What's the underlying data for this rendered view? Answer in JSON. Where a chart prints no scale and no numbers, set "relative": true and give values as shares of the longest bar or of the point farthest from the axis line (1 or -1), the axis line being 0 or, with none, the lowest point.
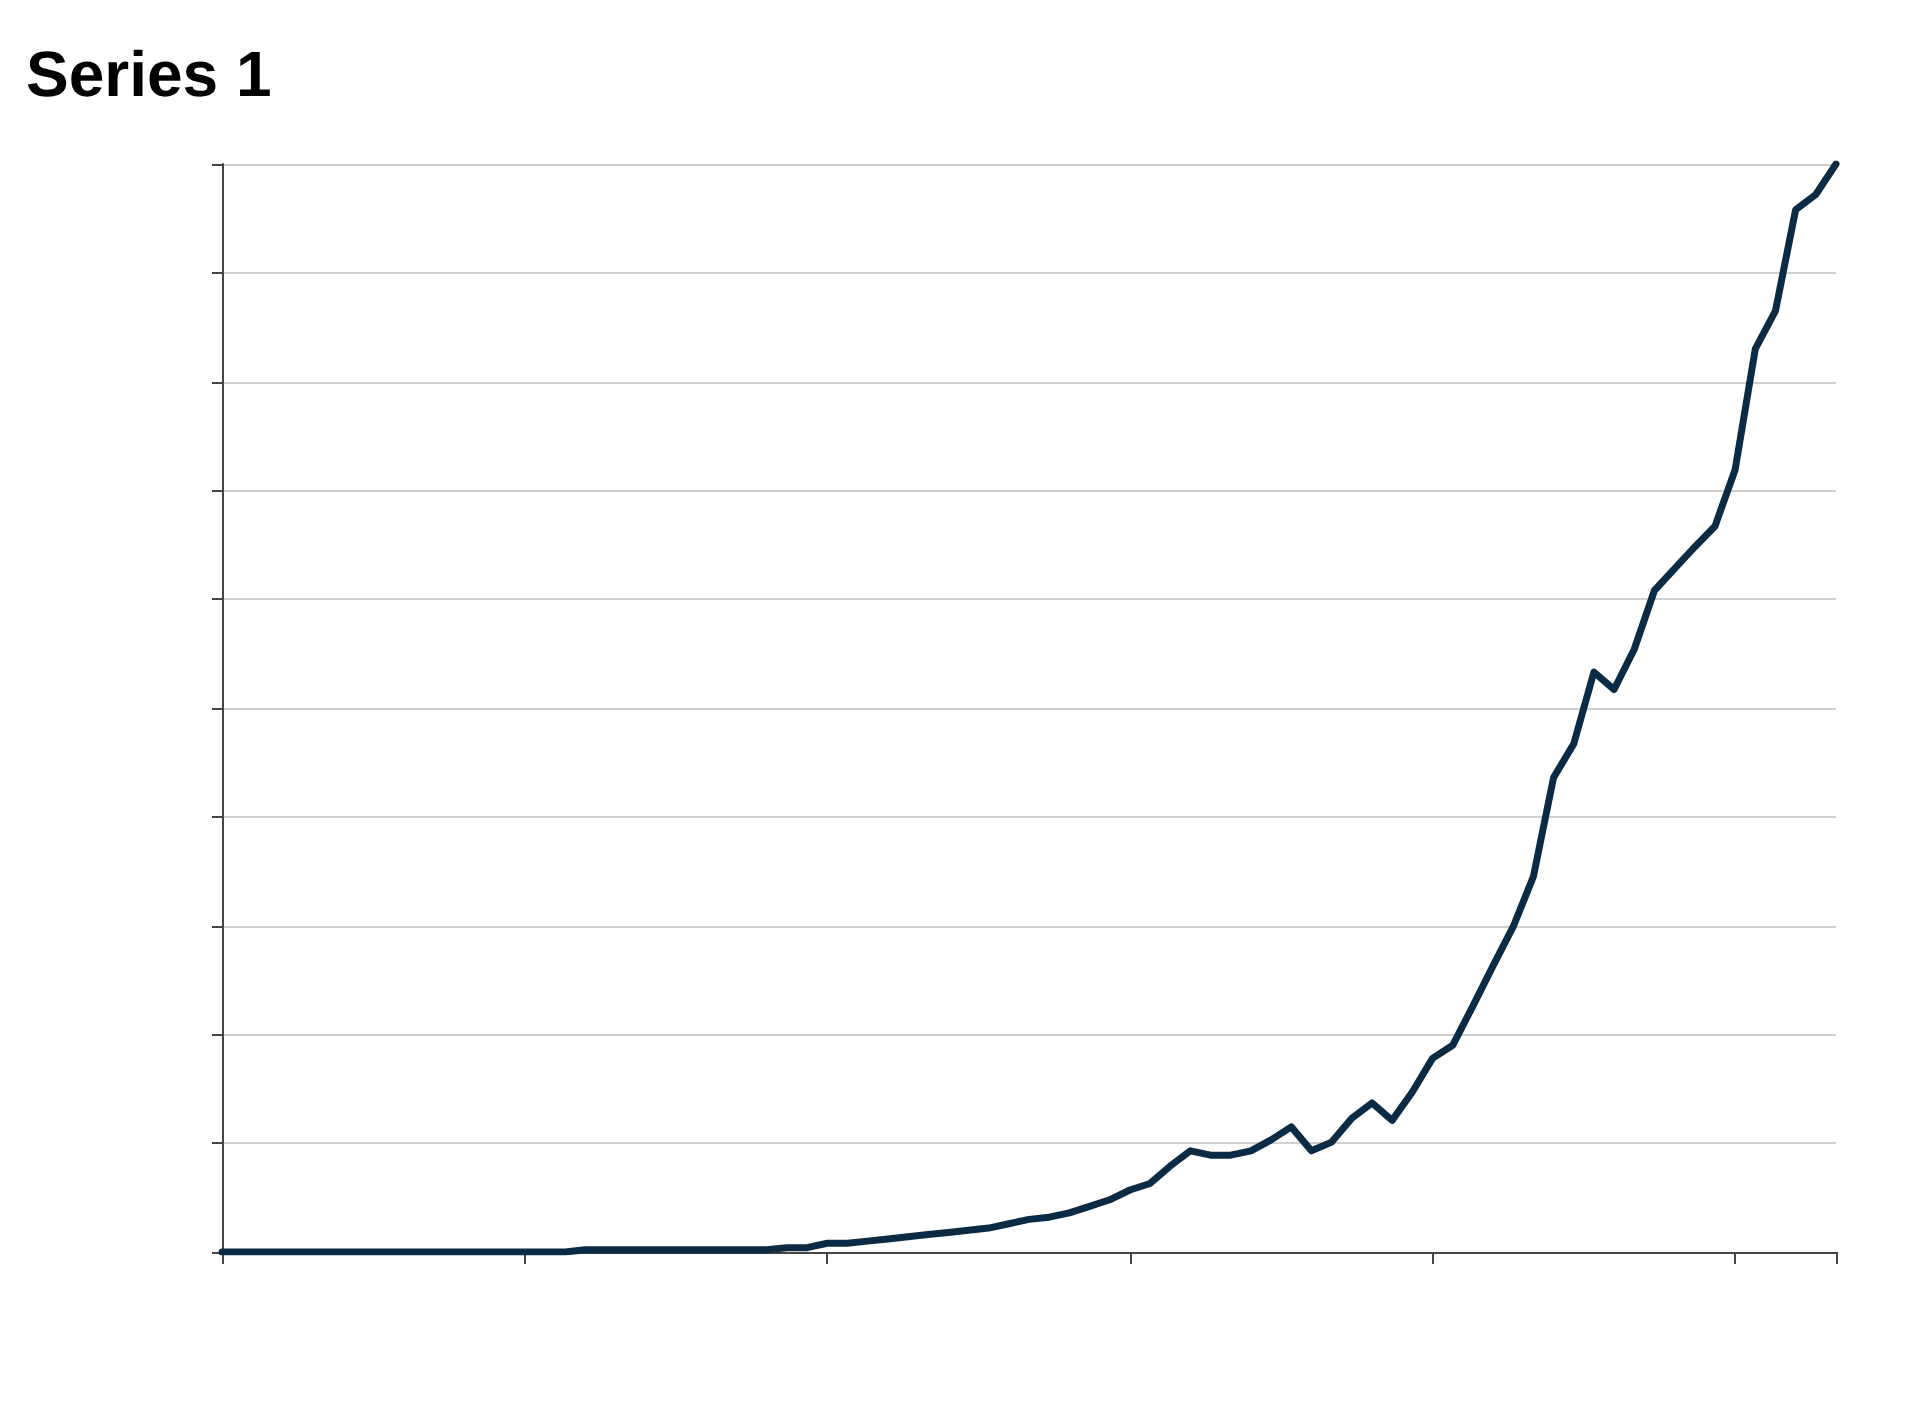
{
  "chart_data": {
    "type": "line",
    "title": "Series 1",
    "relative": true,
    "grid": "y",
    "marker": "none",
    "line_style": "solid",
    "categories": [
      null,
      null,
      null,
      null,
      null,
      null,
      null,
      null,
      null,
      null,
      null,
      null,
      null,
      null,
      null,
      null,
      null,
      null,
      null,
      null,
      null,
      null,
      null,
      null,
      null,
      null,
      null,
      null,
      null,
      null,
      null,
      null,
      null,
      null,
      null,
      null,
      null,
      null,
      null,
      null,
      null,
      null,
      null,
      null,
      null,
      null,
      null,
      null,
      null,
      null,
      null,
      null,
      null,
      null,
      null,
      null,
      null,
      null,
      null,
      null,
      null,
      null,
      null,
      null,
      null,
      null,
      null,
      null,
      null,
      null,
      null,
      null,
      null,
      null,
      null,
      null,
      null,
      null,
      null,
      null,
      null
    ],
    "series": [
      {
        "color": "#0b2a44",
        "values": [
          0,
          0,
          0,
          0,
          0,
          0,
          0,
          0,
          0,
          0,
          0,
          0,
          0,
          0,
          0,
          0,
          0,
          0,
          0.002,
          0.002,
          0.002,
          0.002,
          0.002,
          0.002,
          0.002,
          0.002,
          0.002,
          0.002,
          0.004,
          0.004,
          0.008,
          0.008,
          0.01,
          0.012,
          0.014,
          0.016,
          0.018,
          0.02,
          0.022,
          0.026,
          0.03,
          0.032,
          0.036,
          0.042,
          0.048,
          0.057,
          0.063,
          0.079,
          0.093,
          0.089,
          0.089,
          0.093,
          0.103,
          0.115,
          0.093,
          0.101,
          0.123,
          0.137,
          0.121,
          0.147,
          0.178,
          0.19,
          0.226,
          0.263,
          0.299,
          0.345,
          0.436,
          0.467,
          0.533,
          0.517,
          0.554,
          0.608,
          0.628,
          0.648,
          0.667,
          0.719,
          0.83,
          0.865,
          0.958,
          0.972,
          1
        ]
      }
    ]
  }
}
